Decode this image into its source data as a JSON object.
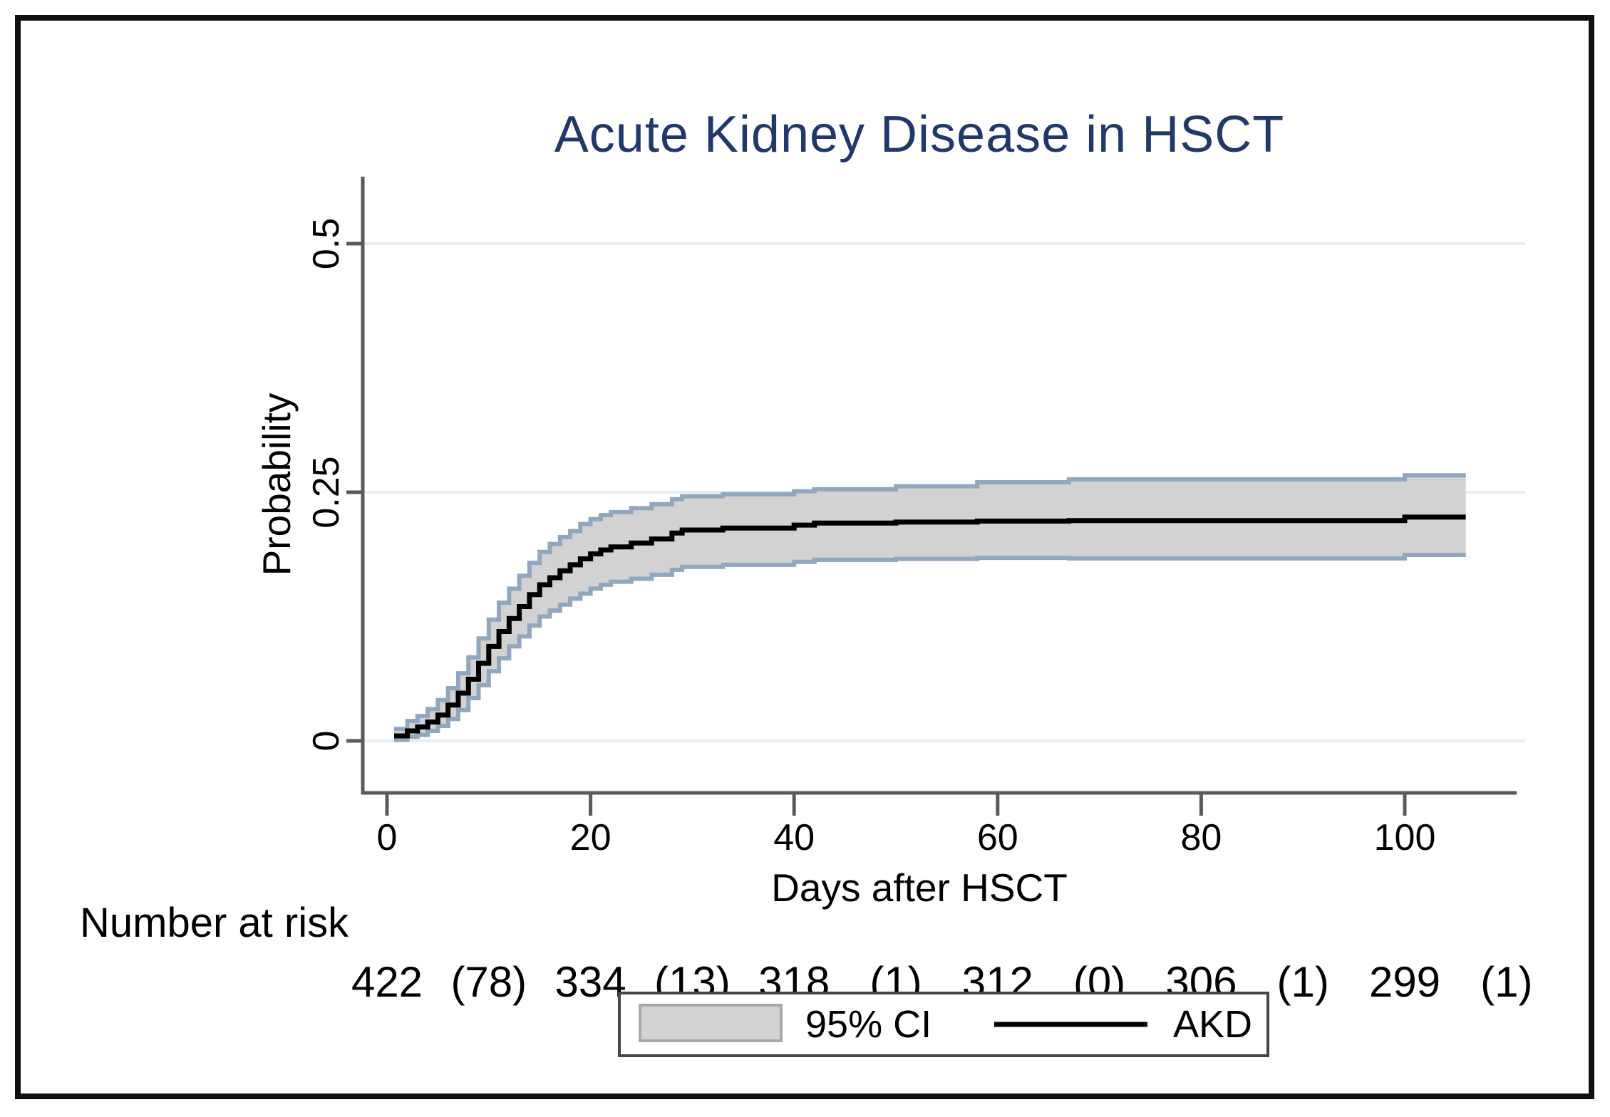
{
  "colors": {
    "title": "#21386a",
    "band_fill": "#d2d2d2",
    "band_edge": "#91a7bd",
    "band_swatch_border": "#a8a8a8",
    "line": "#000000",
    "grid": "#e7eef2",
    "axis": "#5a5a5a",
    "frame": "#101010",
    "legend_border": "#454545"
  },
  "chart_data": {
    "type": "line",
    "subtype": "step-cumulative-incidence-with-ci-band",
    "title": "Acute Kidney Disease in HSCT",
    "xlabel": "Days after HSCT",
    "ylabel": "Probability",
    "xlim": [
      0,
      111
    ],
    "ylim": [
      0,
      0.55
    ],
    "xticks": [
      0,
      20,
      40,
      60,
      80,
      100
    ],
    "yticks": [
      0,
      0.25,
      0.5
    ],
    "ytick_labels": [
      "0",
      "0.25",
      "0.5"
    ],
    "grid": "horizontal-only",
    "legend": {
      "position": "bottom-center",
      "entries": [
        {
          "label": "95% CI",
          "type": "band"
        },
        {
          "label": "AKD",
          "type": "line"
        }
      ]
    },
    "series": [
      {
        "name": "AKD",
        "step": true,
        "end_day": 106,
        "points_format": [
          "day",
          "estimate",
          "ci_lower",
          "ci_upper"
        ],
        "points": [
          [
            0.7,
            0.005,
            0.001,
            0.012
          ],
          [
            2,
            0.01,
            0.004,
            0.02
          ],
          [
            3,
            0.014,
            0.006,
            0.025
          ],
          [
            4,
            0.019,
            0.01,
            0.032
          ],
          [
            5,
            0.026,
            0.015,
            0.041
          ],
          [
            6,
            0.036,
            0.022,
            0.053
          ],
          [
            7,
            0.048,
            0.031,
            0.068
          ],
          [
            8,
            0.062,
            0.043,
            0.084
          ],
          [
            9,
            0.078,
            0.056,
            0.103
          ],
          [
            10,
            0.095,
            0.07,
            0.122
          ],
          [
            11,
            0.11,
            0.083,
            0.139
          ],
          [
            12,
            0.123,
            0.095,
            0.153
          ],
          [
            13,
            0.135,
            0.105,
            0.166
          ],
          [
            14,
            0.147,
            0.116,
            0.179
          ],
          [
            15,
            0.157,
            0.125,
            0.19
          ],
          [
            16,
            0.164,
            0.131,
            0.198
          ],
          [
            17,
            0.171,
            0.137,
            0.205
          ],
          [
            18,
            0.177,
            0.143,
            0.211
          ],
          [
            19,
            0.183,
            0.148,
            0.218
          ],
          [
            20,
            0.188,
            0.153,
            0.223
          ],
          [
            21,
            0.192,
            0.157,
            0.227
          ],
          [
            22,
            0.195,
            0.16,
            0.23
          ],
          [
            24,
            0.199,
            0.163,
            0.234
          ],
          [
            26,
            0.203,
            0.167,
            0.238
          ],
          [
            28,
            0.209,
            0.172,
            0.243
          ],
          [
            29,
            0.212,
            0.175,
            0.246
          ],
          [
            33,
            0.214,
            0.177,
            0.248
          ],
          [
            40,
            0.217,
            0.18,
            0.251
          ],
          [
            42,
            0.219,
            0.182,
            0.253
          ],
          [
            50,
            0.22,
            0.183,
            0.256
          ],
          [
            58,
            0.221,
            0.184,
            0.26
          ],
          [
            67,
            0.2215,
            0.1835,
            0.263
          ],
          [
            100,
            0.225,
            0.187,
            0.267
          ]
        ]
      }
    ],
    "number_at_risk": {
      "label": "Number at risk",
      "times": [
        0,
        20,
        40,
        60,
        80,
        100
      ],
      "counts": [
        422,
        334,
        318,
        312,
        306,
        299
      ],
      "events": [
        "(78)",
        "(13)",
        "(1)",
        "(0)",
        "(1)",
        "(1)"
      ]
    }
  }
}
